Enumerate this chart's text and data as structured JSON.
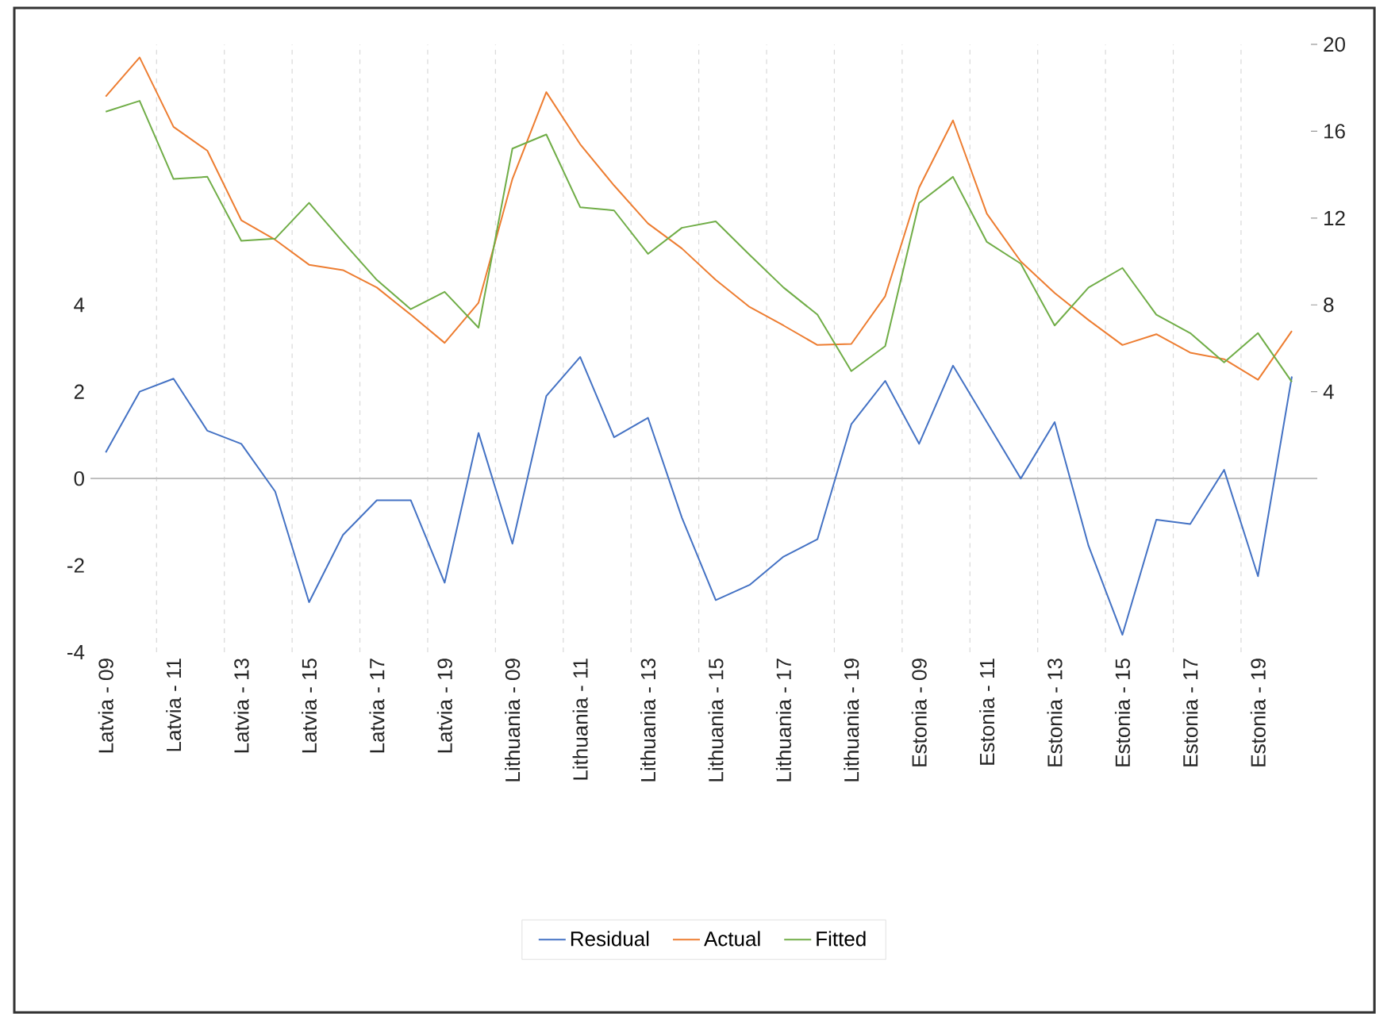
{
  "chart_data": {
    "type": "line",
    "categories": [
      "Latvia - 09",
      null,
      "Latvia - 11",
      null,
      "Latvia - 13",
      null,
      "Latvia - 15",
      null,
      "Latvia - 17",
      null,
      "Latvia - 19",
      null,
      "Lithuania - 09",
      null,
      "Lithuania - 11",
      null,
      "Lithuania - 13",
      null,
      "Lithuania - 15",
      null,
      "Lithuania - 17",
      null,
      "Lithuania - 19",
      null,
      "Estonia - 09",
      null,
      "Estonia - 11",
      null,
      "Estonia - 13",
      null,
      "Estonia - 15",
      null,
      "Estonia - 17",
      null,
      "Estonia - 19",
      null
    ],
    "series": [
      {
        "name": "Residual",
        "color": "#4472c4",
        "values": [
          0.6,
          2.0,
          2.3,
          1.1,
          0.8,
          -0.3,
          -2.85,
          -1.3,
          -0.5,
          -0.5,
          -2.4,
          1.05,
          -1.5,
          1.9,
          2.8,
          0.95,
          1.4,
          -0.9,
          -2.8,
          -2.45,
          -1.8,
          -1.4,
          1.25,
          2.25,
          0.8,
          2.6,
          1.3,
          0.0,
          1.3,
          -1.55,
          -3.6,
          -0.95,
          -1.05,
          0.2,
          -2.25,
          2.35
        ]
      },
      {
        "name": "Actual",
        "color": "#ed7d31",
        "axis": "y2",
        "values": [
          17.6,
          19.4,
          16.2,
          15.1,
          11.9,
          11.0,
          9.85,
          9.6,
          8.8,
          7.55,
          6.25,
          8.1,
          13.8,
          17.8,
          15.4,
          13.5,
          11.75,
          10.6,
          9.15,
          7.9,
          7.05,
          6.15,
          6.2,
          8.4,
          13.4,
          16.5,
          12.2,
          10.0,
          8.55,
          7.3,
          6.15,
          6.65,
          5.8,
          5.5,
          4.55,
          6.8
        ]
      },
      {
        "name": "Fitted",
        "color": "#70ad47",
        "axis": "y2",
        "values": [
          16.9,
          17.4,
          13.8,
          13.9,
          10.95,
          11.05,
          12.7,
          10.9,
          9.15,
          7.8,
          8.6,
          6.95,
          15.2,
          15.85,
          12.5,
          12.35,
          10.35,
          11.55,
          11.85,
          10.3,
          8.8,
          7.55,
          4.95,
          6.1,
          12.7,
          13.9,
          10.9,
          9.9,
          7.05,
          8.8,
          9.7,
          7.55,
          6.7,
          5.35,
          6.7,
          4.45
        ]
      }
    ],
    "ylim": [
      -4,
      10
    ],
    "yticks": [
      -4,
      -2,
      0,
      2,
      4
    ],
    "y2lim": [
      -8,
      20
    ],
    "y2ticks": [
      4,
      8,
      12,
      16,
      20
    ],
    "ref_lines": [
      {
        "axis": "y",
        "value": 0,
        "color": "#bfbfbf"
      }
    ],
    "grid": "x",
    "legend": "bottom"
  }
}
